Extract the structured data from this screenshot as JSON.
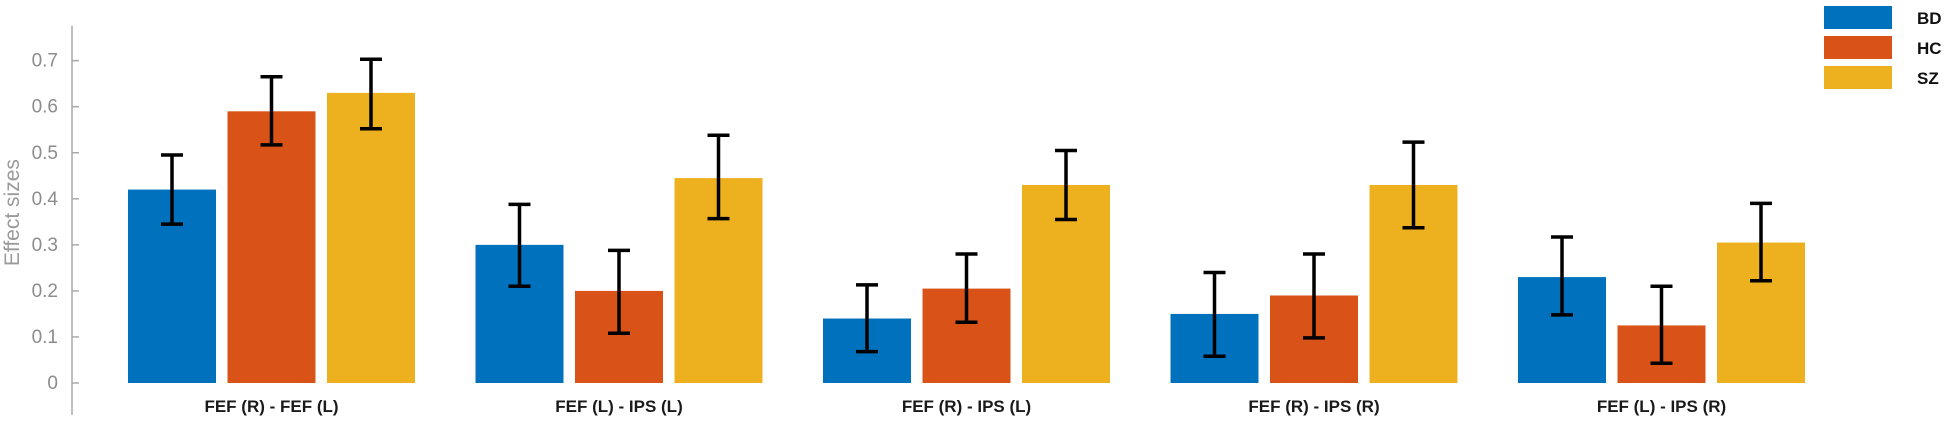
{
  "chart_data": {
    "type": "bar",
    "ylabel": "Effect sizes",
    "xlabel": "",
    "ylim": [
      0,
      0.75
    ],
    "yticks": [
      0,
      0.1,
      0.2,
      0.3,
      0.4,
      0.5,
      0.6,
      0.7
    ],
    "ytick_labels": [
      "0",
      "0.1",
      "0.2",
      "0.3",
      "0.4",
      "0.5",
      "0.6",
      "0.7"
    ],
    "grid": false,
    "legend_position": "top-right",
    "categories": [
      "FEF (R) - FEF (L)",
      "FEF (L) - IPS (L)",
      "FEF (R) - IPS (L)",
      "FEF (R) - IPS (R)",
      "FEF (L) - IPS (R)"
    ],
    "series": [
      {
        "name": "BD",
        "color": "#0072BD",
        "values": [
          0.42,
          0.3,
          0.14,
          0.15,
          0.23
        ],
        "error_low": [
          0.345,
          0.21,
          0.068,
          0.058,
          0.148
        ],
        "error_high": [
          0.495,
          0.388,
          0.213,
          0.24,
          0.317
        ]
      },
      {
        "name": "HC",
        "color": "#D95319",
        "values": [
          0.59,
          0.2,
          0.205,
          0.19,
          0.125
        ],
        "error_low": [
          0.517,
          0.108,
          0.132,
          0.098,
          0.043
        ],
        "error_high": [
          0.665,
          0.288,
          0.28,
          0.28,
          0.21
        ]
      },
      {
        "name": "SZ",
        "color": "#EDB120",
        "values": [
          0.63,
          0.445,
          0.43,
          0.43,
          0.305
        ],
        "error_low": [
          0.552,
          0.357,
          0.355,
          0.337,
          0.222
        ],
        "error_high": [
          0.703,
          0.538,
          0.505,
          0.523,
          0.39
        ]
      }
    ]
  }
}
